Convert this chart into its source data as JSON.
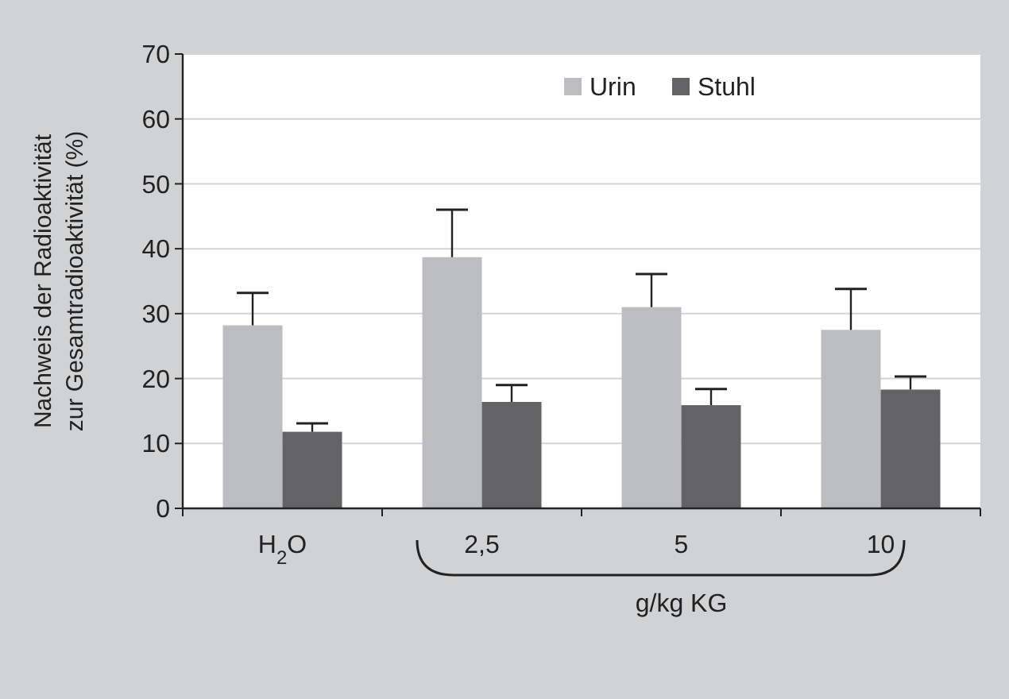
{
  "chart_data": {
    "type": "bar",
    "xlabel": "g/kg KG",
    "ylabel": "Nachweis der Radioaktivität\nzur Gesamtradioaktivität (%)",
    "categories": [
      "H$_{2}$O",
      "2,5",
      "5",
      "10"
    ],
    "series": [
      {
        "name": "Urin",
        "color": "#bcbdc1",
        "values": [
          28.2,
          38.7,
          31,
          27.5
        ],
        "errors": [
          [
            28.2,
            33.2
          ],
          [
            38.7,
            46
          ],
          [
            31,
            36.1
          ],
          [
            27.5,
            33.8
          ]
        ]
      },
      {
        "name": "Stuhl",
        "color": "#636365",
        "values": [
          11.8,
          16.4,
          15.9,
          18.3
        ],
        "errors": [
          [
            11.8,
            13.1
          ],
          [
            16.4,
            19
          ],
          [
            15.9,
            18.4
          ],
          [
            18.3,
            20.3
          ]
        ]
      }
    ],
    "ylim": [
      0,
      70
    ],
    "yticks": [
      0,
      10,
      20,
      30,
      40,
      50,
      60,
      70
    ],
    "grid": "y",
    "legend": "top"
  }
}
